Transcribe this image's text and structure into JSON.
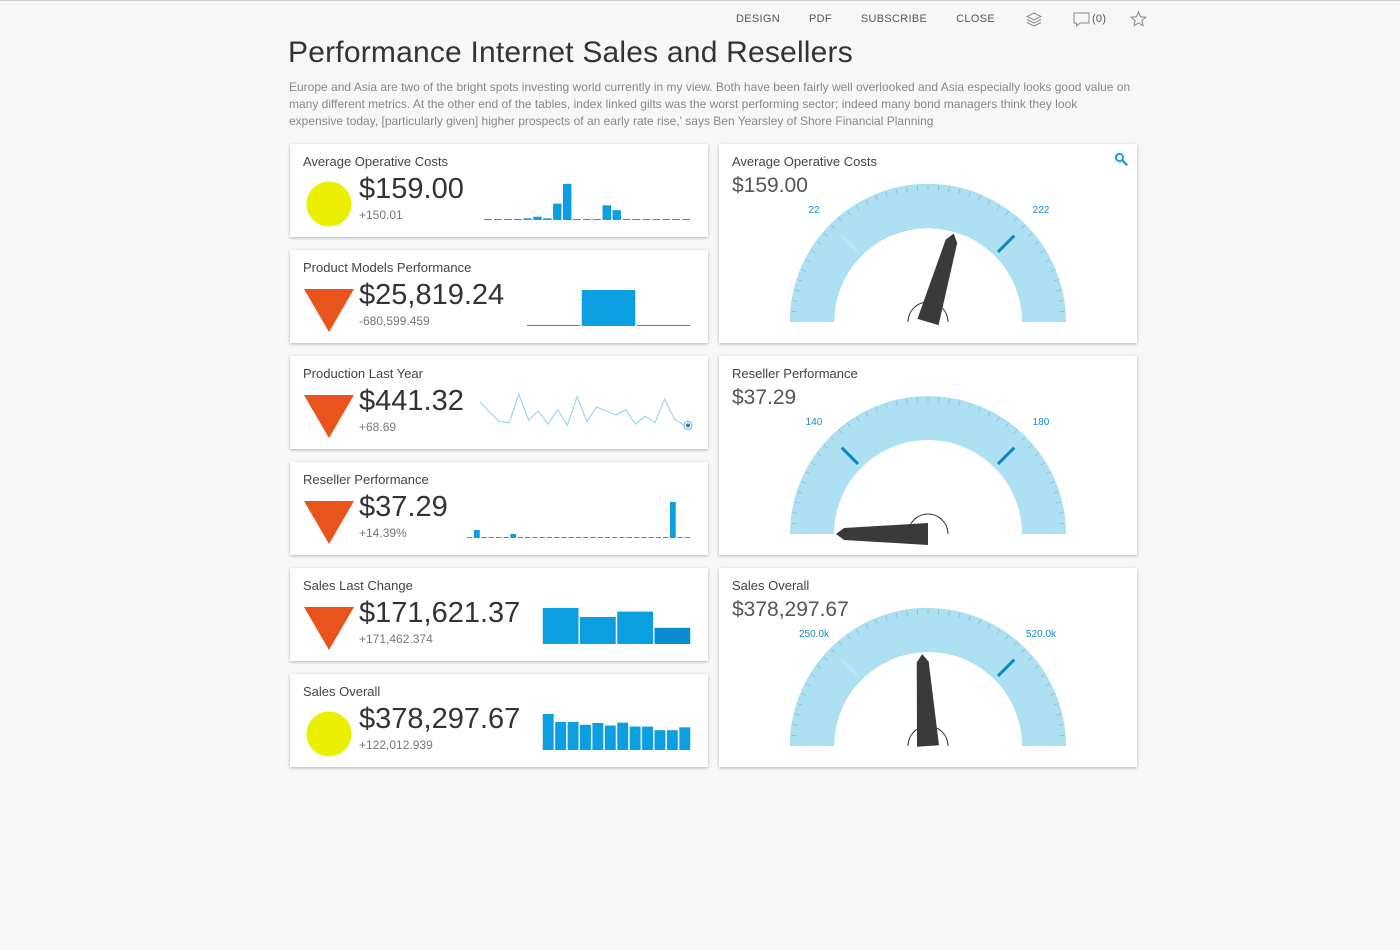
{
  "toolbar": {
    "design": "DESIGN",
    "pdf": "PDF",
    "subscribe": "SUBSCRIBE",
    "close": "CLOSE",
    "comments": "(0)"
  },
  "page": {
    "title": "Performance Internet Sales and Resellers",
    "description": "Europe and Asia are two of the bright spots investing world currently in my view. Both have been fairly well overlooked and Asia especially looks good value on many different metrics. At the other end of the tables, index linked gilts was the worst performing sector; indeed many bond managers think they look expensive today, [particularly given] higher prospects of an early rate rise,' says Ben Yearsley of Shore Financial Planning"
  },
  "colors": {
    "good": "#eaf000",
    "bad": "#e8541c",
    "bar": "#0b9ee0",
    "gauge_dark": "#0a87c4",
    "gauge_light": "#aee0f3",
    "needle": "#3a3a3a"
  },
  "kpis": [
    {
      "title": "Average Operative Costs",
      "value": "$159.00",
      "delta": "+150.01",
      "indicator": "circle",
      "spark": {
        "type": "bar",
        "values": [
          0,
          0,
          0,
          0,
          1,
          2,
          1,
          10,
          22,
          0,
          0,
          0,
          9,
          6,
          0,
          0,
          0,
          0,
          0,
          0,
          0
        ]
      }
    },
    {
      "title": "Product Models Performance",
      "value": "$25,819.24",
      "delta": "-680,599.459",
      "indicator": "triangle-down",
      "spark": {
        "type": "bar",
        "values": [
          0,
          10,
          0
        ]
      }
    },
    {
      "title": "Production Last Year",
      "value": "$441.32",
      "delta": "+68.69",
      "indicator": "triangle-down",
      "spark": {
        "type": "line",
        "values": [
          20,
          12,
          5,
          4,
          26,
          6,
          13,
          3,
          14,
          2,
          24,
          5,
          16,
          13,
          10,
          14,
          3,
          9,
          4,
          22,
          7,
          2
        ]
      }
    },
    {
      "title": "Reseller Performance",
      "value": "$37.29",
      "delta": "+14.39%",
      "indicator": "triangle-down",
      "spark": {
        "type": "bar",
        "values": [
          0,
          4,
          0,
          0,
          0,
          0,
          2,
          0,
          0,
          0,
          0,
          0,
          0,
          0,
          0,
          0,
          0,
          0,
          0,
          0,
          0,
          0,
          0,
          0,
          0,
          0,
          0,
          0,
          18,
          0,
          0
        ]
      }
    },
    {
      "title": "Sales Last Change",
      "value": "$171,621.37",
      "delta": "+171,462.374",
      "indicator": "triangle-down",
      "spark": {
        "type": "bar",
        "values": [
          10,
          7.5,
          9,
          4.5
        ]
      }
    },
    {
      "title": "Sales Overall",
      "value": "$378,297.67",
      "delta": "+122,012.939",
      "indicator": "circle",
      "spark": {
        "type": "bar",
        "values": [
          10,
          7.8,
          7.8,
          7,
          7.5,
          6.8,
          7.6,
          6.5,
          6.5,
          5.5,
          5.5,
          6.3
        ]
      }
    }
  ],
  "gauges": [
    {
      "title": "Average Operative Costs",
      "value": "$159.00",
      "band_low": "22",
      "band_high": "222",
      "fill_fraction": 0.63,
      "needle_fraction": 0.59,
      "show_zoom": true
    },
    {
      "title": "Reseller Performance",
      "value": "$37.29",
      "band_low": "140",
      "band_high": "180",
      "fill_fraction": 0.0,
      "needle_fraction": 0.0,
      "show_zoom": false
    },
    {
      "title": "Sales Overall",
      "value": "$378,297.67",
      "band_low": "250.0k",
      "band_high": "520.0k",
      "fill_fraction": 0.5,
      "needle_fraction": 0.48,
      "show_zoom": false
    }
  ]
}
